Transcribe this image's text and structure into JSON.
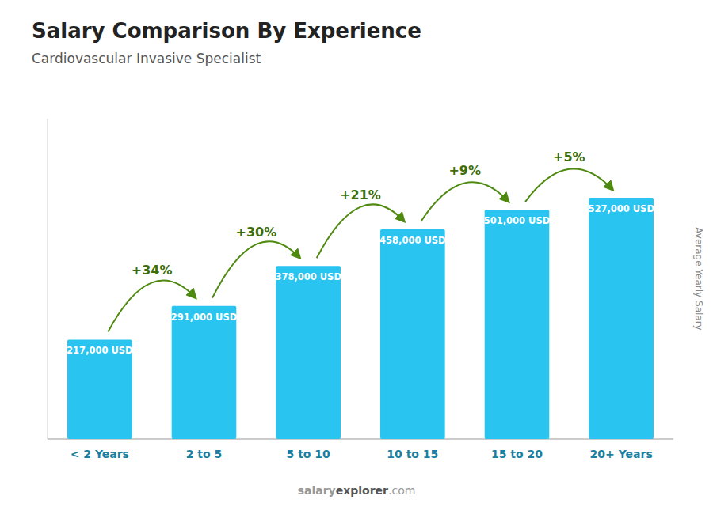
{
  "chart_data": {
    "type": "bar",
    "title": "Salary Comparison By Experience",
    "subtitle": "Cardiovascular Invasive Specialist",
    "ylabel": "Average Yearly Salary",
    "categories": [
      "< 2 Years",
      "2 to 5",
      "5 to 10",
      "10 to 15",
      "15 to 20",
      "20+ Years"
    ],
    "values": [
      217000,
      291000,
      378000,
      458000,
      501000,
      527000
    ],
    "value_labels": [
      "217,000 USD",
      "291,000 USD",
      "378,000 USD",
      "458,000 USD",
      "501,000 USD",
      "527,000 USD"
    ],
    "data_labels": true,
    "annotations": [
      "+34%",
      "+30%",
      "+21%",
      "+9%",
      "+5%"
    ],
    "watermark": [
      "salary",
      "explorer",
      ".com"
    ],
    "color": "#29C4F0",
    "ylim": [
      0,
      700000
    ],
    "tick_labels": "x",
    "grid": false
  }
}
